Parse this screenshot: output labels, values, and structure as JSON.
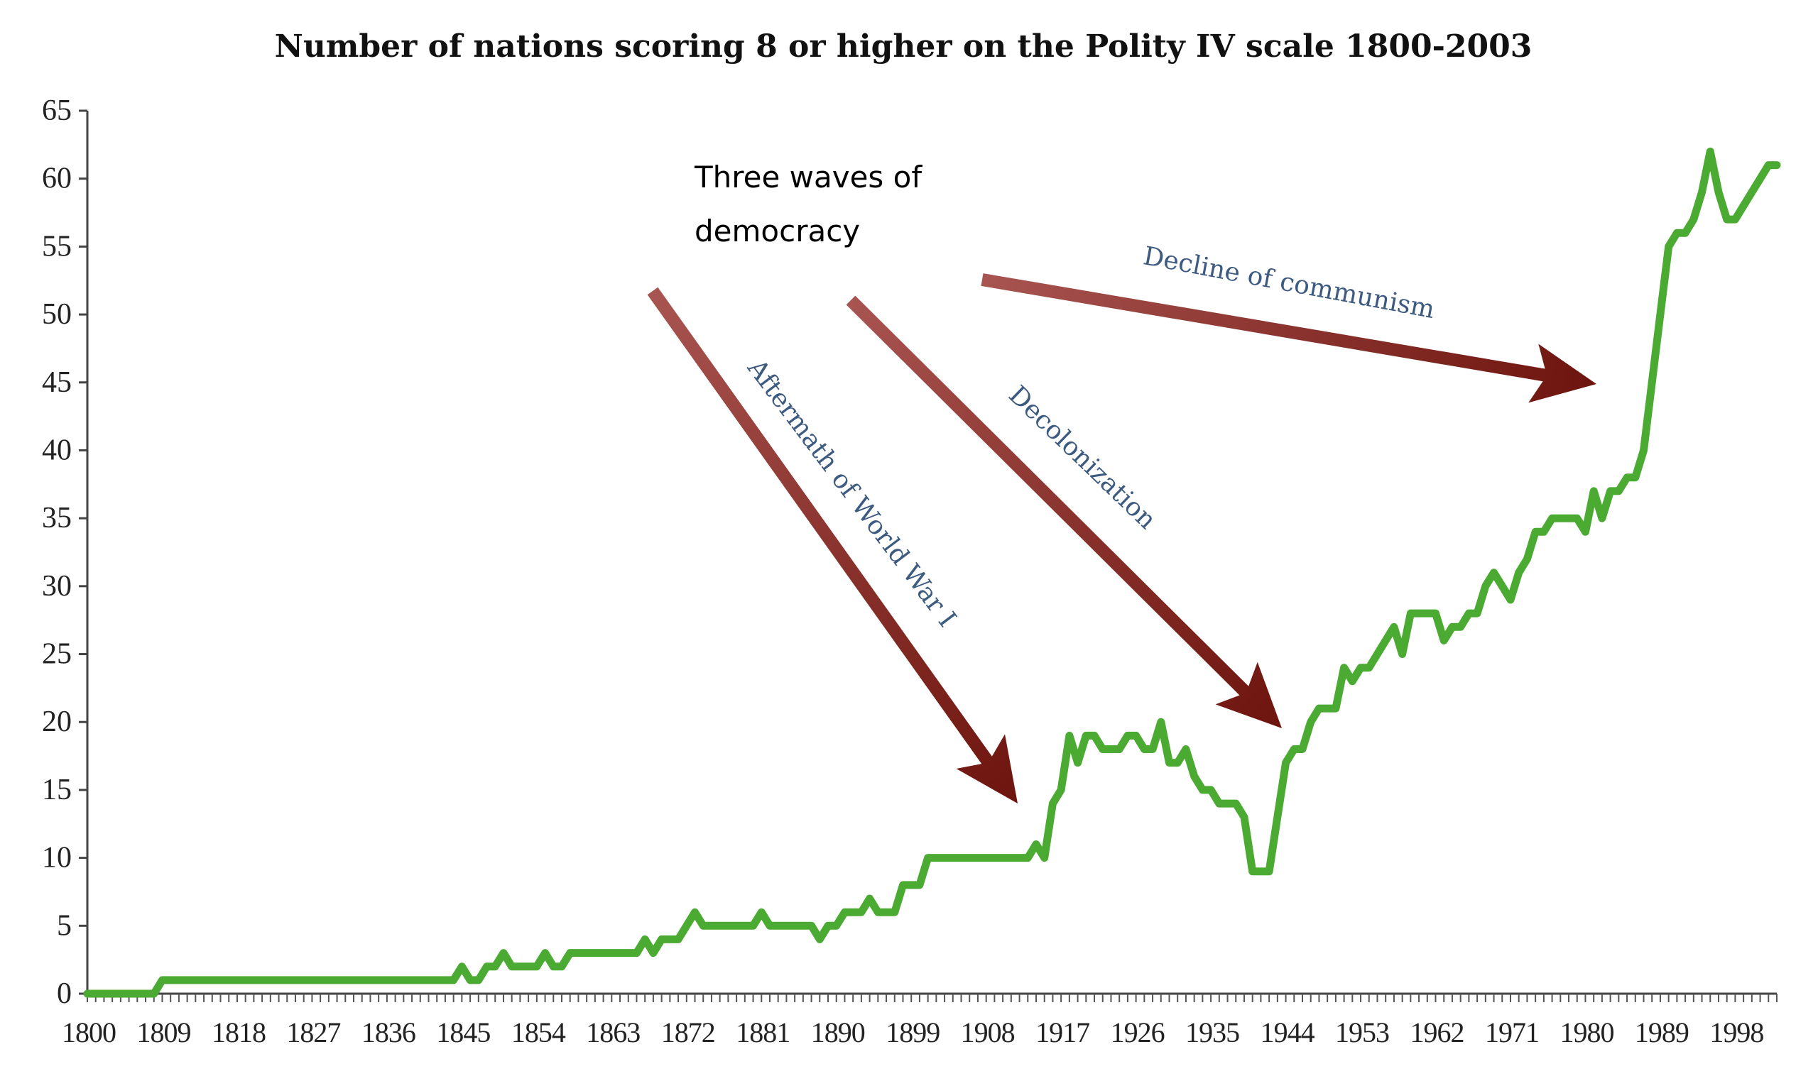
{
  "chart_data": {
    "type": "line",
    "title": "Number of nations scoring 8 or higher on the Polity IV scale 1800-2003",
    "xlabel": "",
    "ylabel": "",
    "xlim": [
      1800,
      2003
    ],
    "ylim": [
      0,
      65
    ],
    "yticks": [
      0,
      5,
      10,
      15,
      20,
      25,
      30,
      35,
      40,
      45,
      50,
      55,
      60,
      65
    ],
    "xticks": [
      1800,
      1809,
      1818,
      1827,
      1836,
      1845,
      1854,
      1863,
      1872,
      1881,
      1890,
      1899,
      1908,
      1917,
      1926,
      1935,
      1944,
      1953,
      1962,
      1971,
      1980,
      1989,
      1998
    ],
    "grid": false,
    "series_color": "#4aaa32",
    "arrow_color": "#7a1a14",
    "series": [
      {
        "name": "Nations scoring 8+",
        "start_year": 1800,
        "values": [
          0,
          0,
          0,
          0,
          0,
          0,
          0,
          0,
          0,
          1,
          1,
          1,
          1,
          1,
          1,
          1,
          1,
          1,
          1,
          1,
          1,
          1,
          1,
          1,
          1,
          1,
          1,
          1,
          1,
          1,
          1,
          1,
          1,
          1,
          1,
          1,
          1,
          1,
          1,
          1,
          1,
          1,
          1,
          1,
          1,
          2,
          1,
          1,
          2,
          2,
          3,
          2,
          2,
          2,
          2,
          3,
          2,
          2,
          3,
          3,
          3,
          3,
          3,
          3,
          3,
          3,
          3,
          4,
          3,
          4,
          4,
          4,
          5,
          6,
          5,
          5,
          5,
          5,
          5,
          5,
          5,
          6,
          5,
          5,
          5,
          5,
          5,
          5,
          4,
          5,
          5,
          6,
          6,
          6,
          7,
          6,
          6,
          6,
          8,
          8,
          8,
          10,
          10,
          10,
          10,
          10,
          10,
          10,
          10,
          10,
          10,
          10,
          10,
          10,
          11,
          10,
          14,
          15,
          19,
          17,
          19,
          19,
          18,
          18,
          18,
          19,
          19,
          18,
          18,
          20,
          17,
          17,
          18,
          16,
          15,
          15,
          14,
          14,
          14,
          13,
          9,
          9,
          9,
          13,
          17,
          18,
          18,
          20,
          21,
          21,
          21,
          24,
          23,
          24,
          24,
          25,
          26,
          27,
          25,
          28,
          28,
          28,
          28,
          26,
          27,
          27,
          28,
          28,
          30,
          31,
          30,
          29,
          31,
          32,
          34,
          34,
          35,
          35,
          35,
          35,
          34,
          37,
          35,
          37,
          37,
          38,
          38,
          40,
          45,
          50,
          55,
          56,
          56,
          57,
          59,
          62,
          59,
          57,
          57,
          58,
          59,
          60,
          61,
          61
        ]
      }
    ],
    "annotations": {
      "waves_line1": "Three waves of",
      "waves_line2": "democracy",
      "wave1": "Aftermath of World War I",
      "wave2": "Decolonization",
      "wave3": "Decline of communism"
    }
  }
}
